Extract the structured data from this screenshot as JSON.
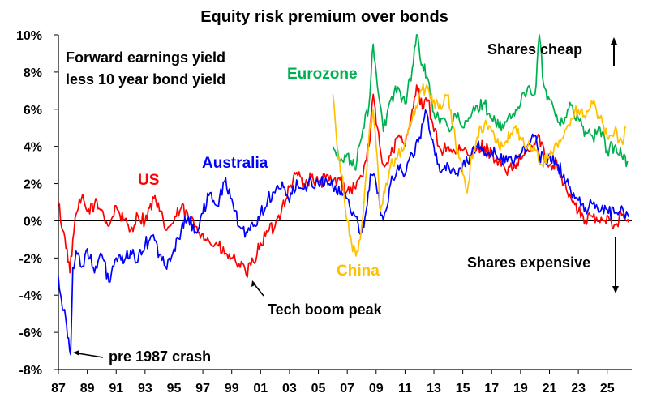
{
  "chart_data": {
    "type": "line",
    "title": "Equity risk premium over bonds",
    "xlabel": "",
    "ylabel": "",
    "xlim": [
      1987,
      2026.7
    ],
    "ylim": [
      -8,
      10
    ],
    "x_ticks": [
      "87",
      "89",
      "91",
      "93",
      "95",
      "97",
      "99",
      "01",
      "03",
      "05",
      "07",
      "09",
      "11",
      "13",
      "15",
      "17",
      "19",
      "21",
      "23",
      "25"
    ],
    "y_ticks": [
      "10%",
      "8%",
      "6%",
      "4%",
      "2%",
      "0%",
      "-2%",
      "-4%",
      "-6%",
      "-8%"
    ],
    "annotations": {
      "subtitle_line1": "Forward earnings yield",
      "subtitle_line2": "less 10 year bond yield",
      "shares_cheap": "Shares cheap",
      "shares_expensive": "Shares expensive",
      "tech_boom": "Tech boom peak",
      "pre_crash": "pre 1987 crash"
    },
    "series": [
      {
        "name": "US",
        "color": "#ff0000",
        "points": [
          [
            1987.0,
            1.0
          ],
          [
            1987.3,
            -0.5
          ],
          [
            1987.6,
            -1.5
          ],
          [
            1987.8,
            -2.8
          ],
          [
            1988.0,
            -1.0
          ],
          [
            1988.3,
            0.5
          ],
          [
            1988.6,
            1.2
          ],
          [
            1989.0,
            0.5
          ],
          [
            1989.5,
            0.9
          ],
          [
            1990.0,
            0.6
          ],
          [
            1990.5,
            -0.3
          ],
          [
            1991.0,
            0.8
          ],
          [
            1991.5,
            0.0
          ],
          [
            1992.0,
            -0.5
          ],
          [
            1992.5,
            0.3
          ],
          [
            1993.0,
            0.0
          ],
          [
            1993.6,
            1.2
          ],
          [
            1994.0,
            0.5
          ],
          [
            1994.5,
            -0.5
          ],
          [
            1995.0,
            0.0
          ],
          [
            1995.5,
            0.7
          ],
          [
            1996.0,
            0.2
          ],
          [
            1996.5,
            -0.3
          ],
          [
            1997.0,
            -0.7
          ],
          [
            1997.5,
            -1.2
          ],
          [
            1998.0,
            -1.3
          ],
          [
            1998.5,
            -1.8
          ],
          [
            1999.0,
            -2.0
          ],
          [
            1999.5,
            -2.3
          ],
          [
            2000.0,
            -2.9
          ],
          [
            2000.5,
            -2.2
          ],
          [
            2001.0,
            -1.2
          ],
          [
            2001.5,
            -0.6
          ],
          [
            2002.0,
            -0.3
          ],
          [
            2002.5,
            0.8
          ],
          [
            2003.0,
            1.8
          ],
          [
            2003.5,
            2.6
          ],
          [
            2004.0,
            2.0
          ],
          [
            2004.5,
            2.3
          ],
          [
            2005.0,
            2.0
          ],
          [
            2005.5,
            2.3
          ],
          [
            2006.0,
            2.1
          ],
          [
            2006.5,
            2.2
          ],
          [
            2007.0,
            1.6
          ],
          [
            2007.5,
            1.8
          ],
          [
            2008.0,
            2.4
          ],
          [
            2008.5,
            4.0
          ],
          [
            2008.8,
            6.8
          ],
          [
            2009.0,
            5.2
          ],
          [
            2009.5,
            3.0
          ],
          [
            2010.0,
            3.5
          ],
          [
            2010.5,
            4.5
          ],
          [
            2011.0,
            4.0
          ],
          [
            2011.5,
            6.0
          ],
          [
            2011.8,
            7.3
          ],
          [
            2012.2,
            6.0
          ],
          [
            2012.6,
            6.5
          ],
          [
            2013.0,
            4.8
          ],
          [
            2013.5,
            3.8
          ],
          [
            2014.0,
            4.0
          ],
          [
            2014.5,
            3.6
          ],
          [
            2015.0,
            3.8
          ],
          [
            2015.5,
            3.5
          ],
          [
            2016.0,
            3.9
          ],
          [
            2016.5,
            4.0
          ],
          [
            2017.0,
            3.6
          ],
          [
            2017.5,
            3.2
          ],
          [
            2018.0,
            2.6
          ],
          [
            2018.5,
            2.8
          ],
          [
            2019.0,
            3.3
          ],
          [
            2019.5,
            3.8
          ],
          [
            2020.0,
            4.1
          ],
          [
            2020.3,
            4.6
          ],
          [
            2020.7,
            3.3
          ],
          [
            2021.0,
            3.0
          ],
          [
            2021.5,
            3.2
          ],
          [
            2022.0,
            2.0
          ],
          [
            2022.5,
            1.2
          ],
          [
            2023.0,
            0.5
          ],
          [
            2023.5,
            0.0
          ],
          [
            2024.0,
            0.2
          ],
          [
            2024.5,
            -0.1
          ],
          [
            2025.0,
            0.3
          ],
          [
            2025.5,
            -0.2
          ],
          [
            2026.0,
            0.3
          ],
          [
            2026.5,
            -0.1
          ]
        ]
      },
      {
        "name": "Australia",
        "color": "#0000ff",
        "points": [
          [
            1987.0,
            -3.0
          ],
          [
            1987.2,
            -4.2
          ],
          [
            1987.5,
            -5.2
          ],
          [
            1987.7,
            -6.3
          ],
          [
            1987.85,
            -7.2
          ],
          [
            1988.0,
            -2.5
          ],
          [
            1988.3,
            -1.8
          ],
          [
            1988.6,
            -2.5
          ],
          [
            1989.0,
            -1.5
          ],
          [
            1989.5,
            -2.8
          ],
          [
            1990.0,
            -1.8
          ],
          [
            1990.5,
            -3.3
          ],
          [
            1991.0,
            -2.0
          ],
          [
            1991.5,
            -2.3
          ],
          [
            1992.0,
            -1.6
          ],
          [
            1992.5,
            -2.2
          ],
          [
            1993.0,
            -1.3
          ],
          [
            1993.5,
            -0.8
          ],
          [
            1994.0,
            -1.8
          ],
          [
            1994.5,
            -2.6
          ],
          [
            1995.0,
            -1.5
          ],
          [
            1995.5,
            -0.5
          ],
          [
            1996.0,
            0.2
          ],
          [
            1996.5,
            -0.6
          ],
          [
            1997.0,
            0.4
          ],
          [
            1997.5,
            1.5
          ],
          [
            1998.0,
            0.8
          ],
          [
            1998.5,
            2.1
          ],
          [
            1999.0,
            1.2
          ],
          [
            1999.5,
            -0.3
          ],
          [
            2000.0,
            -0.6
          ],
          [
            2000.5,
            -0.3
          ],
          [
            2001.0,
            0.4
          ],
          [
            2001.5,
            1.2
          ],
          [
            2002.0,
            1.5
          ],
          [
            2002.5,
            2.1
          ],
          [
            2003.0,
            1.0
          ],
          [
            2003.5,
            2.2
          ],
          [
            2004.0,
            1.7
          ],
          [
            2004.5,
            2.2
          ],
          [
            2005.0,
            2.0
          ],
          [
            2005.5,
            2.3
          ],
          [
            2006.0,
            1.8
          ],
          [
            2006.5,
            1.4
          ],
          [
            2007.0,
            1.2
          ],
          [
            2007.5,
            0.3
          ],
          [
            2008.0,
            -0.6
          ],
          [
            2008.3,
            0.5
          ],
          [
            2008.6,
            2.5
          ],
          [
            2009.0,
            2.0
          ],
          [
            2009.5,
            0.0
          ],
          [
            2010.0,
            2.0
          ],
          [
            2010.5,
            3.0
          ],
          [
            2011.0,
            2.5
          ],
          [
            2011.5,
            3.6
          ],
          [
            2012.0,
            4.5
          ],
          [
            2012.5,
            5.8
          ],
          [
            2013.0,
            4.0
          ],
          [
            2013.5,
            2.6
          ],
          [
            2014.0,
            3.0
          ],
          [
            2014.5,
            2.5
          ],
          [
            2015.0,
            3.0
          ],
          [
            2015.5,
            3.5
          ],
          [
            2016.0,
            4.0
          ],
          [
            2016.5,
            3.5
          ],
          [
            2017.0,
            3.8
          ],
          [
            2017.5,
            3.3
          ],
          [
            2018.0,
            3.5
          ],
          [
            2018.5,
            3.0
          ],
          [
            2019.0,
            3.6
          ],
          [
            2019.5,
            4.1
          ],
          [
            2020.0,
            4.6
          ],
          [
            2020.3,
            3.5
          ],
          [
            2020.7,
            3.2
          ],
          [
            2021.0,
            3.6
          ],
          [
            2021.5,
            3.0
          ],
          [
            2022.0,
            2.5
          ],
          [
            2022.5,
            1.5
          ],
          [
            2023.0,
            1.1
          ],
          [
            2023.5,
            0.7
          ],
          [
            2024.0,
            0.9
          ],
          [
            2024.5,
            0.5
          ],
          [
            2025.0,
            0.6
          ],
          [
            2025.5,
            0.4
          ],
          [
            2026.0,
            0.8
          ],
          [
            2026.5,
            0.2
          ]
        ]
      },
      {
        "name": "Eurozone",
        "color": "#00b050",
        "points": [
          [
            2006.0,
            4.0
          ],
          [
            2006.5,
            3.2
          ],
          [
            2007.0,
            3.6
          ],
          [
            2007.5,
            2.8
          ],
          [
            2008.0,
            4.5
          ],
          [
            2008.5,
            6.2
          ],
          [
            2008.8,
            9.5
          ],
          [
            2009.0,
            8.0
          ],
          [
            2009.5,
            4.8
          ],
          [
            2010.0,
            6.5
          ],
          [
            2010.5,
            7.2
          ],
          [
            2011.0,
            6.3
          ],
          [
            2011.5,
            8.2
          ],
          [
            2011.8,
            10.0
          ],
          [
            2012.2,
            8.4
          ],
          [
            2012.6,
            7.6
          ],
          [
            2013.0,
            5.8
          ],
          [
            2013.5,
            5.5
          ],
          [
            2014.0,
            5.0
          ],
          [
            2014.5,
            5.7
          ],
          [
            2015.0,
            5.0
          ],
          [
            2015.5,
            5.5
          ],
          [
            2016.0,
            6.2
          ],
          [
            2016.5,
            6.3
          ],
          [
            2017.0,
            5.5
          ],
          [
            2017.5,
            5.0
          ],
          [
            2018.0,
            5.3
          ],
          [
            2018.5,
            5.8
          ],
          [
            2019.0,
            6.3
          ],
          [
            2019.5,
            7.2
          ],
          [
            2020.0,
            6.8
          ],
          [
            2020.3,
            10.0
          ],
          [
            2020.6,
            7.3
          ],
          [
            2021.0,
            6.5
          ],
          [
            2021.5,
            5.7
          ],
          [
            2022.0,
            5.2
          ],
          [
            2022.5,
            6.2
          ],
          [
            2023.0,
            5.5
          ],
          [
            2023.5,
            4.8
          ],
          [
            2024.0,
            4.5
          ],
          [
            2024.5,
            5.0
          ],
          [
            2025.0,
            3.8
          ],
          [
            2025.5,
            4.0
          ],
          [
            2026.0,
            3.5
          ],
          [
            2026.4,
            3.2
          ]
        ]
      },
      {
        "name": "China",
        "color": "#ffc000",
        "points": [
          [
            2006.0,
            6.8
          ],
          [
            2006.3,
            4.0
          ],
          [
            2006.6,
            2.5
          ],
          [
            2007.0,
            0.0
          ],
          [
            2007.3,
            -1.2
          ],
          [
            2007.6,
            -1.9
          ],
          [
            2007.9,
            -1.0
          ],
          [
            2008.2,
            1.5
          ],
          [
            2008.5,
            4.5
          ],
          [
            2008.8,
            6.0
          ],
          [
            2009.0,
            4.0
          ],
          [
            2009.3,
            0.5
          ],
          [
            2009.6,
            1.5
          ],
          [
            2010.0,
            3.0
          ],
          [
            2010.5,
            3.5
          ],
          [
            2011.0,
            4.3
          ],
          [
            2011.5,
            5.5
          ],
          [
            2012.0,
            6.8
          ],
          [
            2012.5,
            7.3
          ],
          [
            2013.0,
            6.5
          ],
          [
            2013.5,
            6.0
          ],
          [
            2014.0,
            6.8
          ],
          [
            2014.5,
            4.2
          ],
          [
            2015.0,
            2.5
          ],
          [
            2015.3,
            1.5
          ],
          [
            2015.6,
            3.5
          ],
          [
            2016.0,
            4.5
          ],
          [
            2016.5,
            5.2
          ],
          [
            2017.0,
            4.8
          ],
          [
            2017.5,
            4.0
          ],
          [
            2018.0,
            4.3
          ],
          [
            2018.5,
            5.0
          ],
          [
            2019.0,
            4.5
          ],
          [
            2019.5,
            4.0
          ],
          [
            2020.0,
            3.8
          ],
          [
            2020.5,
            3.0
          ],
          [
            2021.0,
            3.5
          ],
          [
            2021.5,
            4.2
          ],
          [
            2022.0,
            4.6
          ],
          [
            2022.5,
            5.5
          ],
          [
            2023.0,
            6.0
          ],
          [
            2023.5,
            5.5
          ],
          [
            2024.0,
            6.3
          ],
          [
            2024.5,
            5.5
          ],
          [
            2025.0,
            4.5
          ],
          [
            2025.5,
            4.8
          ],
          [
            2026.0,
            4.3
          ],
          [
            2026.3,
            5.0
          ]
        ]
      }
    ]
  }
}
